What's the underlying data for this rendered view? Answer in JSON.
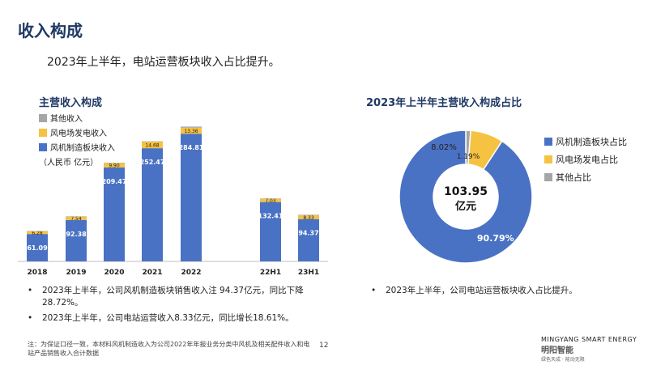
{
  "page": {
    "title": "收入构成",
    "subtitle": "2023年上半年，电站运营板块收入占比提升。",
    "page_number": "12"
  },
  "left_chart": {
    "title": "主营收入构成",
    "unit": "（人民币 亿元）",
    "legend": [
      "其他收入",
      "风电场发电收入",
      "风机制造板块收入"
    ]
  },
  "right_chart": {
    "title": "2023年上半年主营收入构成占比",
    "center_value": "103.95",
    "center_unit": "亿元",
    "legend": [
      "风机制造板块占比",
      "风电场发电占比",
      "其他占比"
    ]
  },
  "colors": {
    "manufacturing": "#4a72c4",
    "wind_power": "#f5c242",
    "other": "#a6a6a6",
    "title": "#1f3864"
  },
  "chart_data": [
    {
      "type": "bar",
      "stacked": true,
      "title": "主营收入构成",
      "ylabel": "（人民币 亿元）",
      "categories": [
        "2018",
        "2019",
        "2020",
        "2021",
        "2022",
        "22H1",
        "23H1"
      ],
      "series": [
        {
          "name": "风机制造板块收入",
          "values": [
            61.09,
            92.38,
            209.47,
            252.47,
            284.81,
            132.41,
            94.37
          ],
          "labels": [
            "61.09",
            "92.38",
            "209.47",
            "252.47",
            "284.81",
            "132.41",
            "94.37"
          ]
        },
        {
          "name": "风电场发电收入",
          "values": [
            6.28,
            7.54,
            9.9,
            14.68,
            13.36,
            7.03,
            8.33
          ],
          "labels": [
            "6.28",
            "7.54",
            "9.90",
            "14.68",
            "13.36",
            "7.03",
            "8.33"
          ]
        },
        {
          "name": "其他收入",
          "values": [
            0.5,
            0.5,
            0.6,
            0.7,
            2.5,
            1.0,
            1.25
          ]
        }
      ]
    },
    {
      "type": "pie",
      "donut": true,
      "title": "2023年上半年主营收入构成占比",
      "categories": [
        "风机制造板块占比",
        "风电场发电占比",
        "其他占比"
      ],
      "values": [
        90.79,
        8.02,
        1.19
      ],
      "labels": [
        "90.79%",
        "8.02%",
        "1.19%"
      ]
    }
  ],
  "bullets_left": [
    "2023年上半年，公司风机制造板块销售收入注 94.37亿元，同比下降28.72%。",
    "2023年上半年，公司电站运营收入8.33亿元，同比增长18.61%。"
  ],
  "bullets_right": [
    "2023年上半年，公司电站运营板块收入占比提升。"
  ],
  "footnote": "注：为保证口径一致，本材料风机制造收入为公司2022年年报业务分类中风机及相关配件收入和电站产品销售收入合计数据",
  "brand": {
    "name_en": "MINGYANG SMART ENERGY",
    "name_cn": "明阳智能",
    "tagline": "绿色天成 · 能动无限"
  }
}
